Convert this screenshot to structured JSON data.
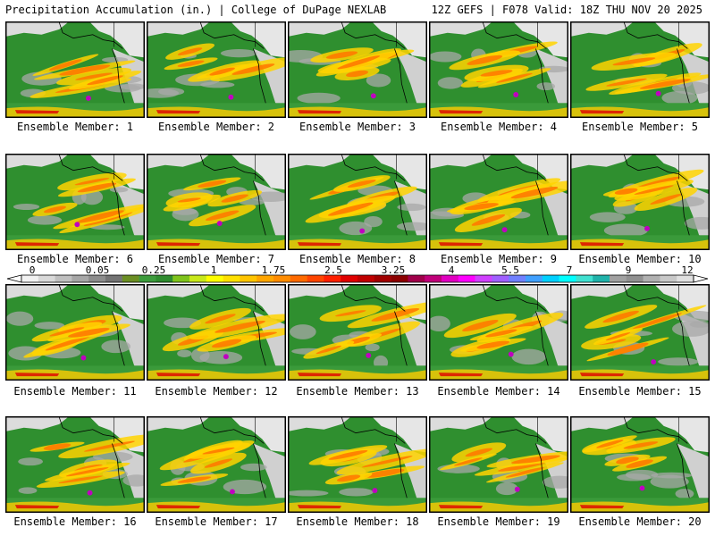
{
  "header": {
    "left": "Precipitation Accumulation (in.) | College of DuPage NEXLAB",
    "right": "12Z GEFS | F078 Valid: 18Z THU NOV 20 2025"
  },
  "members": [
    {
      "label": "Ensemble Member: 1"
    },
    {
      "label": "Ensemble Member: 2"
    },
    {
      "label": "Ensemble Member: 3"
    },
    {
      "label": "Ensemble Member: 4"
    },
    {
      "label": "Ensemble Member: 5"
    },
    {
      "label": "Ensemble Member: 6"
    },
    {
      "label": "Ensemble Member: 7"
    },
    {
      "label": "Ensemble Member: 8"
    },
    {
      "label": "Ensemble Member: 9"
    },
    {
      "label": "Ensemble Member: 10"
    },
    {
      "label": "Ensemble Member: 11"
    },
    {
      "label": "Ensemble Member: 12"
    },
    {
      "label": "Ensemble Member: 13"
    },
    {
      "label": "Ensemble Member: 14"
    },
    {
      "label": "Ensemble Member: 15"
    },
    {
      "label": "Ensemble Member: 16"
    },
    {
      "label": "Ensemble Member: 17"
    },
    {
      "label": "Ensemble Member: 18"
    },
    {
      "label": "Ensemble Member: 19"
    },
    {
      "label": "Ensemble Member: 20"
    }
  ],
  "colorbar": {
    "tick_labels": [
      "0",
      "0.05",
      "0.25",
      "1",
      "1.75",
      "2.5",
      "3.25",
      "4",
      "5.5",
      "7",
      "9",
      "12"
    ],
    "colors": [
      "#f2f2f2",
      "#d9d9d9",
      "#bfbfbf",
      "#a6a6a6",
      "#8c8c8c",
      "#737373",
      "#6b8e23",
      "#3c9b3c",
      "#2e8b2e",
      "#7fc31c",
      "#c8e81a",
      "#ffff00",
      "#ffe000",
      "#ffc400",
      "#ffa500",
      "#ff8c00",
      "#ff6a00",
      "#ff4500",
      "#ff2000",
      "#e00000",
      "#c00000",
      "#a00000",
      "#8b0000",
      "#a0004a",
      "#c0007a",
      "#e000c0",
      "#ff00ff",
      "#d040ff",
      "#a060ff",
      "#7080ff",
      "#40a0ff",
      "#00d0ff",
      "#00ffff",
      "#40e0d0",
      "#20b2aa",
      "#a0a0a0",
      "#909090",
      "#b0b0b0",
      "#c8c8c8",
      "#e0e0e0"
    ]
  }
}
